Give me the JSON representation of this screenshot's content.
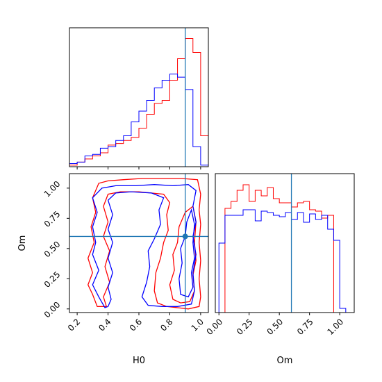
{
  "chart_data": {
    "type": "corner",
    "parameters": [
      "H0",
      "Om"
    ],
    "truths": {
      "H0": 0.9,
      "Om": 0.6
    },
    "colors": {
      "red": "#ff0000",
      "blue": "#0000ff",
      "truth": "#1f77b4"
    },
    "xlabel": "H0",
    "ylabel": "Om",
    "h0_axis": {
      "range": [
        0.15,
        1.05
      ],
      "ticks": [
        "0.2",
        "0.4",
        "0.6",
        "0.8",
        "1.0"
      ]
    },
    "om_axis": {
      "range": [
        -0.03,
        1.12
      ],
      "ticks": [
        "0.00",
        "0.25",
        "0.50",
        "0.75",
        "1.00"
      ]
    },
    "h0_hist": {
      "bin_edges": [
        0.15,
        0.2,
        0.25,
        0.3,
        0.35,
        0.4,
        0.45,
        0.5,
        0.55,
        0.6,
        0.65,
        0.7,
        0.75,
        0.8,
        0.85,
        0.9,
        0.95,
        1.0,
        1.05
      ],
      "series": [
        {
          "color": "red",
          "values": [
            1,
            3,
            5,
            7,
            9,
            14,
            15,
            17,
            19,
            25,
            34,
            41,
            43,
            56,
            70,
            83,
            74,
            20
          ]
        },
        {
          "color": "blue",
          "values": [
            2,
            3,
            7,
            8,
            12,
            13,
            17,
            20,
            29,
            36,
            43,
            51,
            56,
            60,
            58,
            50,
            13,
            1
          ]
        }
      ]
    },
    "om_hist": {
      "bin_edges": [
        -0.05,
        0.0,
        0.05,
        0.1,
        0.15,
        0.2,
        0.25,
        0.3,
        0.35,
        0.4,
        0.45,
        0.5,
        0.55,
        0.6,
        0.65,
        0.7,
        0.75,
        0.8,
        0.85,
        0.9,
        0.95,
        1.0,
        1.05,
        1.1
      ],
      "series": [
        {
          "color": "red",
          "values": [
            0,
            0,
            75,
            80,
            88,
            92,
            80,
            88,
            84,
            90,
            82,
            79,
            79,
            76,
            79,
            80,
            74,
            73,
            68,
            70,
            0,
            0,
            0
          ]
        },
        {
          "color": "blue",
          "values": [
            0,
            50,
            70,
            70,
            70,
            74,
            74,
            66,
            73,
            72,
            70,
            69,
            72,
            67,
            72,
            65,
            71,
            67,
            70,
            60,
            52,
            3,
            0
          ]
        }
      ]
    }
  }
}
